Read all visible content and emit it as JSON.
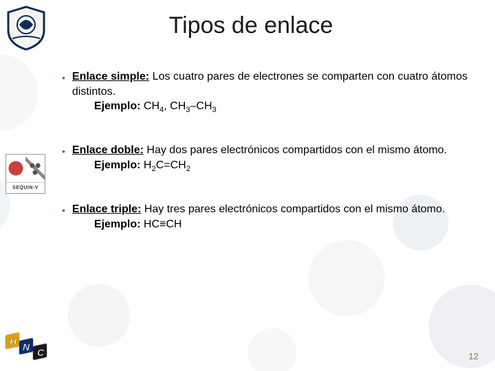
{
  "title": "Tipos de enlace",
  "items": [
    {
      "head": "Enlace simple:",
      "text": " Los cuatro pares de electrones se comparten con cuatro átomos distintos.",
      "ejemplo_label": "Ejemplo:",
      "ejemplo_html": " CH<sub>4</sub>, CH<sub>3</sub>–CH<sub>3</sub>"
    },
    {
      "head": "Enlace doble:",
      "text": " Hay dos pares electrónicos compartidos con el mismo átomo.",
      "ejemplo_label": "Ejemplo:",
      "ejemplo_html": "  H<sub>2</sub>C=CH<sub>2</sub>"
    },
    {
      "head": "Enlace triple:",
      "text": " Hay tres pares electrónicos compartidos con el mismo átomo.",
      "ejemplo_label": "Ejemplo:",
      "ejemplo_html": "  HC≡CH"
    }
  ],
  "page_number": "12",
  "sequin_label": "SEQUIN-V",
  "colors": {
    "bullet": "#4b6a88",
    "pagenum": "#8a7a55",
    "hnc_h": "#d9a013",
    "hnc_n": "#0b2e6b",
    "hnc_c": "#1a1a1a"
  }
}
